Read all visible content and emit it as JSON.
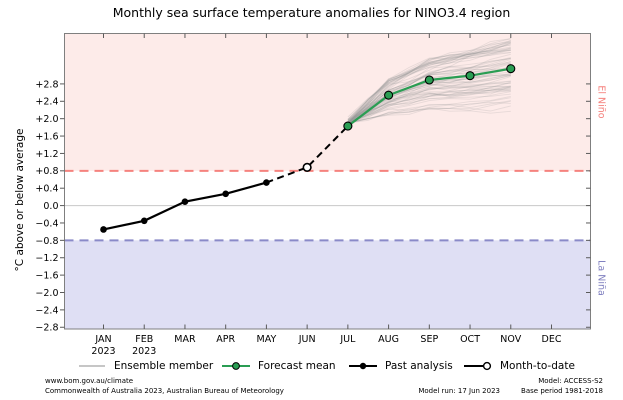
{
  "title": "Monthly sea surface temperature anomalies for NINO3.4 region",
  "chart_data": {
    "type": "line",
    "title": "Monthly sea surface temperature anomalies for NINO3.4 region",
    "xlabel": "",
    "ylabel": "°C above or below average",
    "categories": [
      "JAN",
      "FEB",
      "MAR",
      "APR",
      "MAY",
      "JUN",
      "JUL",
      "AUG",
      "SEP",
      "OCT",
      "NOV",
      "DEC"
    ],
    "category_sublabels": {
      "JAN": "2023",
      "FEB": "2023"
    },
    "ylim": [
      -2.84,
      3.96
    ],
    "ytick_values": [
      2.8,
      2.4,
      2.0,
      1.6,
      1.2,
      0.8,
      0.4,
      0.0,
      -0.4,
      -0.8,
      -1.2,
      -1.6,
      -2.0,
      -2.4,
      -2.8
    ],
    "ytick_labels": [
      "+2.8",
      "+2.4",
      "+2.0",
      "+1.6",
      "+1.2",
      "+0.8",
      "+0.4",
      "0.0",
      "−0.4",
      "−0.8",
      "−1.2",
      "−1.6",
      "−2.0",
      "−2.4",
      "−2.8"
    ],
    "grid": "zero-line-only",
    "legend_position": "bottom",
    "series": {
      "past_analysis": {
        "label": "Past analysis",
        "style": "solid black line, filled dots",
        "months": [
          "JAN",
          "FEB",
          "MAR",
          "APR",
          "MAY"
        ],
        "values": [
          -0.55,
          -0.35,
          0.09,
          0.27,
          0.53
        ]
      },
      "month_to_date": {
        "label": "Month-to-date",
        "style": "open circle, dashed black connector MAY-JUN-JUL",
        "month": "JUN",
        "value": 0.88
      },
      "forecast_mean": {
        "label": "Forecast mean",
        "style": "solid green line, filled green dots",
        "months": [
          "JUL",
          "AUG",
          "SEP",
          "OCT",
          "NOV"
        ],
        "values": [
          1.83,
          2.54,
          2.89,
          2.99,
          3.15
        ]
      },
      "ensemble": {
        "label": "Ensemble member",
        "style": "thin translucent gray lines fanning out",
        "count": 72,
        "months": [
          "JUL",
          "AUG",
          "SEP",
          "OCT",
          "NOV"
        ],
        "mean": [
          1.83,
          2.54,
          2.89,
          2.99,
          3.15
        ],
        "spread_at_nov": [
          2.0,
          3.7
        ]
      }
    },
    "thresholds": {
      "el_nino": {
        "value": 0.8,
        "label": "El Niño",
        "line": "red dashed",
        "band": "pink above +0.8"
      },
      "la_nina": {
        "value": -0.8,
        "label": "La Niña",
        "line": "blue dashed",
        "band": "lavender below −0.8"
      }
    },
    "colors": {
      "forecast_green": "#2a9d53",
      "past_black": "#000000",
      "ensemble_gray": "#999999",
      "legend_ensemble_gray": "#b3b3b3",
      "el_nino_line": "#f5827e",
      "el_nino_fill": "#fdebe9",
      "el_nino_text": "#f5827e",
      "la_nina_line": "#8a8ac8",
      "la_nina_fill": "#dfdff4",
      "la_nina_text": "#8181c0",
      "zero_line": "#c8c8c8",
      "spine": "#7f7f7f",
      "tick": "#5a5a5a"
    }
  },
  "legend": {
    "items": [
      {
        "label": "Ensemble member"
      },
      {
        "label": "Forecast mean"
      },
      {
        "label": "Past analysis"
      },
      {
        "label": "Month-to-date"
      }
    ]
  },
  "footer": {
    "url": "www.bom.gov.au/climate",
    "copyright": "Commonwealth of Australia 2023, Australian Bureau of Meteorology",
    "model_run": "Model run: 17 Jun 2023",
    "model": "Model: ACCESS-S2",
    "base_period": "Base period 1981-2018"
  }
}
